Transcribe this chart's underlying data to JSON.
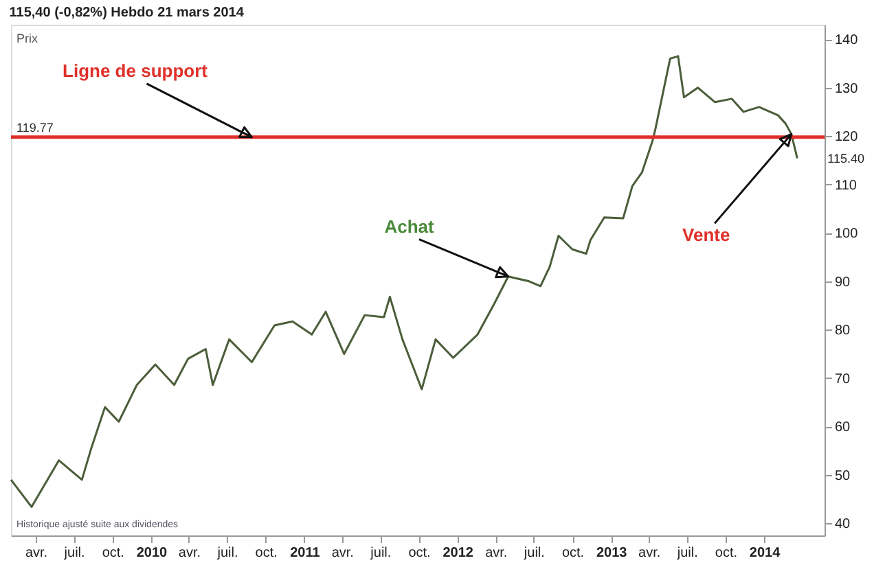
{
  "chart_data": {
    "type": "line",
    "title": "115,40 (-0,82%) Hebdo 21 mars 2014",
    "x": [
      "2009-02-01",
      "2009-03-22",
      "2009-05-26",
      "2009-07-20",
      "2009-08-12",
      "2009-09-13",
      "2009-10-16",
      "2009-11-28",
      "2010-01-11",
      "2010-02-25",
      "2010-03-30",
      "2010-05-11",
      "2010-05-28",
      "2010-07-06",
      "2010-08-29",
      "2010-10-22",
      "2010-12-04",
      "2011-01-19",
      "2011-02-21",
      "2011-04-06",
      "2011-05-25",
      "2011-07-10",
      "2011-07-24",
      "2011-08-23",
      "2011-10-08",
      "2011-11-10",
      "2011-12-22",
      "2012-02-18",
      "2012-03-29",
      "2012-05-01",
      "2012-06-20",
      "2012-07-17",
      "2012-08-08",
      "2012-08-29",
      "2012-10-01",
      "2012-11-03",
      "2012-11-13",
      "2012-12-16",
      "2013-01-30",
      "2013-02-21",
      "2013-03-16",
      "2013-04-10",
      "2013-04-17",
      "2013-05-22",
      "2013-06-10",
      "2013-06-24",
      "2013-07-27",
      "2013-09-06",
      "2013-10-16",
      "2013-11-13",
      "2013-12-20",
      "2014-02-03",
      "2014-02-21",
      "2014-03-07",
      "2014-03-21"
    ],
    "series": [
      {
        "color": "#4b5e3a",
        "values": [
          49,
          43.4,
          53,
          49,
          55.7,
          64,
          61,
          68.6,
          72.8,
          68.6,
          74,
          76,
          68.6,
          78,
          73.3,
          80.9,
          81.7,
          79,
          83.7,
          75,
          83,
          82.6,
          86.8,
          78,
          67.7,
          78,
          74.2,
          79,
          85.4,
          91,
          90,
          89,
          93,
          99.4,
          96.6,
          95.7,
          98.5,
          103.2,
          103,
          109.7,
          112.5,
          119,
          121.5,
          136,
          136.5,
          128,
          130,
          127,
          127.7,
          125,
          126,
          124.3,
          122.6,
          120.4,
          115.4
        ]
      }
    ],
    "xlim": [
      "2009-02-01",
      "2014-05-25"
    ],
    "xticks": [
      {
        "value": "2009-04-01",
        "label": "avr."
      },
      {
        "value": "2009-07-01",
        "label": "juil."
      },
      {
        "value": "2009-10-01",
        "label": "oct."
      },
      {
        "value": "2010-01-01",
        "label": "2010"
      },
      {
        "value": "2010-04-01",
        "label": "avr."
      },
      {
        "value": "2010-07-01",
        "label": "juil."
      },
      {
        "value": "2010-10-01",
        "label": "oct."
      },
      {
        "value": "2011-01-01",
        "label": "2011"
      },
      {
        "value": "2011-04-01",
        "label": "avr."
      },
      {
        "value": "2011-07-01",
        "label": "juil."
      },
      {
        "value": "2011-10-01",
        "label": "oct."
      },
      {
        "value": "2012-01-01",
        "label": "2012"
      },
      {
        "value": "2012-04-01",
        "label": "avr."
      },
      {
        "value": "2012-07-01",
        "label": "juil."
      },
      {
        "value": "2012-10-01",
        "label": "oct."
      },
      {
        "value": "2013-01-01",
        "label": "2013"
      },
      {
        "value": "2013-04-01",
        "label": "avr."
      },
      {
        "value": "2013-07-01",
        "label": "juil."
      },
      {
        "value": "2013-10-01",
        "label": "oct."
      },
      {
        "value": "2014-01-01",
        "label": "2014"
      }
    ],
    "ylim": [
      37.5,
      143
    ],
    "yticks": [
      40,
      50,
      60,
      70,
      80,
      90,
      100,
      110,
      120,
      130,
      140
    ],
    "ref_lines": [
      {
        "axis": "y",
        "value": 119.77,
        "label": "119.77",
        "color": "#e0302a"
      }
    ],
    "annotations": [
      "Prix",
      "Historique ajusté suite aux dividendes",
      {
        "text": "Ligne de support",
        "x": "2010-08-29",
        "y": 119.77
      },
      {
        "text": "Achat",
        "x": "2012-05-01",
        "y": 91
      },
      {
        "text": "Vente",
        "x": "2014-03-07",
        "y": 120.4
      },
      {
        "text": "115.40",
        "x": "2014-03-21",
        "y": 115.4
      }
    ],
    "grid": false,
    "marker": "none",
    "line_style": "solid"
  }
}
